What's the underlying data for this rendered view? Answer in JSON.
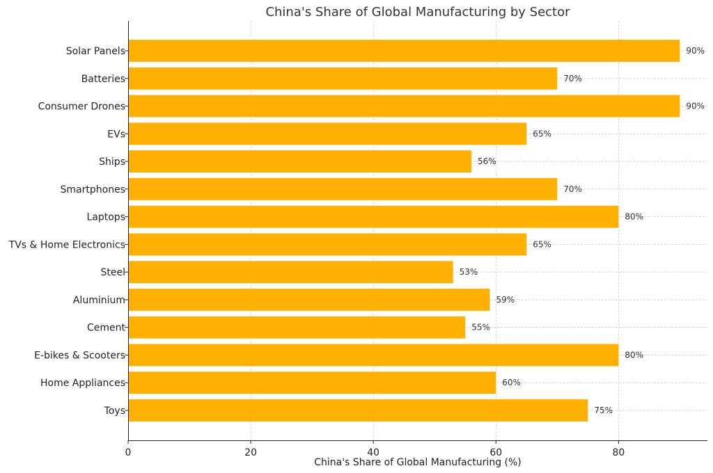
{
  "chart_data": {
    "type": "bar",
    "orientation": "horizontal",
    "title": "China's Share of Global Manufacturing by Sector",
    "xlabel": "China's Share of Global Manufacturing (%)",
    "ylabel": "",
    "categories": [
      "Solar Panels",
      "Batteries",
      "Consumer Drones",
      "EVs",
      "Ships",
      "Smartphones",
      "Laptops",
      "TVs & Home Electronics",
      "Steel",
      "Aluminium",
      "Cement",
      "E-bikes & Scooters",
      "Home Appliances",
      "Toys"
    ],
    "values": [
      90,
      70,
      90,
      65,
      56,
      70,
      80,
      65,
      53,
      59,
      55,
      80,
      60,
      75
    ],
    "data_labels": [
      "90%",
      "70%",
      "90%",
      "65%",
      "56%",
      "70%",
      "80%",
      "65%",
      "53%",
      "59%",
      "55%",
      "80%",
      "60%",
      "75%"
    ],
    "xlim": [
      0,
      94.5
    ],
    "xticks": [
      0,
      20,
      40,
      60,
      80
    ],
    "xtick_labels": [
      "0",
      "20",
      "40",
      "60",
      "80"
    ],
    "grid": true,
    "bar_color": "#FFB000"
  }
}
